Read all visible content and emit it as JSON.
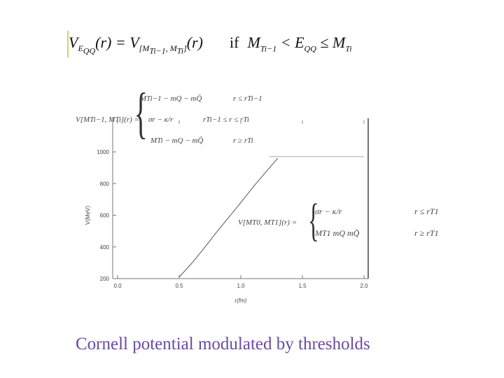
{
  "equation_top": {
    "lhs": "V",
    "lhs_sub": "E",
    "lhs_subsub": "QQ",
    "arg": "(r) = V",
    "rhs_sub": "[M",
    "rhs_sub2": "Ti−1",
    "rhs_sub3": ", M",
    "rhs_sub4": "Ti",
    "rhs_sub5": "]",
    "arg2": "(r)",
    "if": "if",
    "cond_a": "M",
    "cond_a_sub": "Ti−1",
    "cond_lt": " < E",
    "cond_e_sub": "QQ",
    "cond_le": " ≤ M",
    "cond_b_sub": "Ti"
  },
  "piecewise_general": {
    "lhs": "V[MTi−1, MTi](r) =",
    "brace": "{",
    "rows": [
      {
        "expr": "MTi−1 − mQ − mQ̄",
        "cond": "r ≤ rTi−1"
      },
      {
        "expr": "σr − κ/r",
        "cond": "rTi−1 ≤ r ≤ rTi"
      },
      {
        "expr": "MTi − mQ − mQ̄",
        "cond": "r ≥ rTi"
      }
    ]
  },
  "piecewise_specific": {
    "lhs": "V[MT0, MT1](r) =",
    "brace": "{",
    "rows": [
      {
        "expr": "σr − κ/r",
        "cond": "r ≤ rT1"
      },
      {
        "expr": "MT1   mQ   mQ̄",
        "cond": "r ≥ rT1"
      }
    ]
  },
  "chart_data": {
    "type": "line",
    "xlabel": "r(fm)",
    "ylabel": "V(MeV)",
    "xlim": [
      0.0,
      2.0
    ],
    "ylim": [
      200,
      1000
    ],
    "x_ticks": [
      "0.0",
      "0.5",
      "1.0",
      "1.5",
      "2.0"
    ],
    "y_ticks": [
      "200",
      "400",
      "600",
      "800",
      "1000"
    ],
    "series": [
      {
        "x": [
          0.5,
          0.6,
          0.7,
          0.8,
          0.9,
          1.0,
          1.1,
          1.2,
          1.3
        ],
        "y": [
          210,
          295,
          390,
          490,
          585,
          680,
          778,
          870,
          960
        ]
      },
      {
        "x": [
          1.23,
          2.0
        ],
        "y": [
          970,
          970
        ]
      }
    ]
  },
  "caption": "Cornell potential modulated by thresholds",
  "colors": {
    "caption": "#6a4aa2",
    "line": "#555555",
    "accent_bar": "#d9cf6a"
  }
}
